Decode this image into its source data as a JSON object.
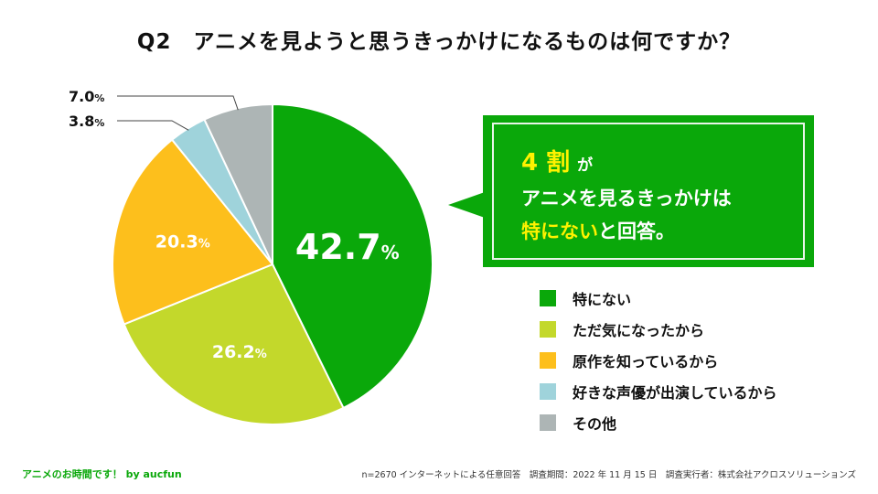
{
  "chart_data": {
    "type": "pie",
    "title": "Q2　アニメを見ようと思うきっかけになるものは何ですか？",
    "series": [
      {
        "name": "特にない",
        "value": 42.7,
        "label": "42.7",
        "color": "#0aa80a"
      },
      {
        "name": "ただ気になったから",
        "value": 26.2,
        "label": "26.2",
        "color": "#c3d82b"
      },
      {
        "name": "原作を知っているから",
        "value": 20.3,
        "label": "20.3",
        "color": "#fdbf1c"
      },
      {
        "name": "好きな声優が出演しているから",
        "value": 3.8,
        "label": "3.8",
        "color": "#9fd3db"
      },
      {
        "name": "その他",
        "value": 7.0,
        "label": "7.0",
        "color": "#adb5b5"
      }
    ],
    "unit": "%",
    "legend": "right"
  },
  "callout": {
    "line1_highlight": "4 割",
    "line1_rest": "が",
    "line2": "アニメを見るきっかけは",
    "line3_highlight": "特にない",
    "line3_rest": "と回答。"
  },
  "footer": {
    "left": "アニメのお時間です！ by aucfun",
    "right": "n=2670 インターネットによる任意回答　調査期間：2022 年 11 月 15 日　調査実行者：株式会社アクロスソリューションズ"
  }
}
